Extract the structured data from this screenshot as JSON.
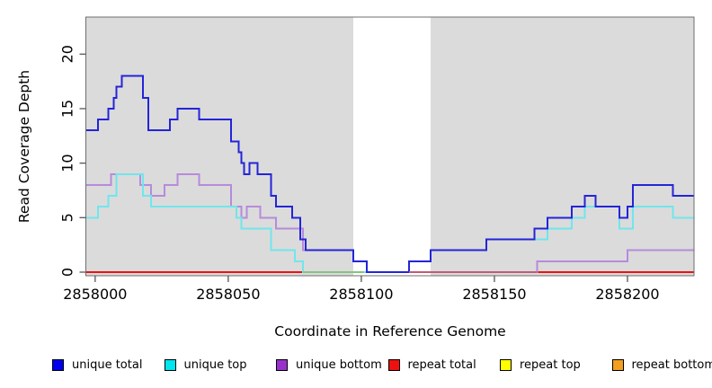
{
  "chart_data": {
    "type": "line",
    "subtype": "step-coverage-plot",
    "title": "",
    "xlabel": "Coordinate in Reference Genome",
    "ylabel": "Read Coverage Depth",
    "xlim": [
      2857996.5,
      2858225
    ],
    "ylim": [
      -0.33,
      23.4
    ],
    "grid": false,
    "x_ticks": [
      {
        "label": "2858000",
        "value": 2858000
      },
      {
        "label": "2858050",
        "value": 2858050
      },
      {
        "label": "2858100",
        "value": 2858100
      },
      {
        "label": "2858150",
        "value": 2858150
      },
      {
        "label": "2858200",
        "value": 2858200
      }
    ],
    "y_ticks": [
      {
        "label": "0",
        "value": 0
      },
      {
        "label": "5",
        "value": 5
      },
      {
        "label": "10",
        "value": 10
      },
      {
        "label": "15",
        "value": 15
      },
      {
        "label": "20",
        "value": 20
      }
    ],
    "background_color": "#ffffff",
    "shade_color": "#dbdbdb",
    "frame_color": "#6e6e6e",
    "tick_color": "#555555",
    "shaded_regions": [
      [
        2857996.5,
        2858097
      ],
      [
        2858126,
        2858225
      ]
    ],
    "uncovered_gap": [
      2858097,
      2858126
    ],
    "series": [
      {
        "name": "repeat bottom",
        "color": "#ffa414",
        "steps": [
          [
            2857996.5,
            0
          ]
        ]
      },
      {
        "name": "repeat top",
        "color": "#ffff00",
        "steps": [
          [
            2857996.5,
            0
          ]
        ]
      },
      {
        "name": "repeat total",
        "color": "#ee1111",
        "steps": [
          [
            2857996.5,
            0
          ]
        ]
      },
      {
        "name": "unique bottom",
        "color": "#b68bdb",
        "steps": [
          [
            2857996.5,
            8
          ],
          [
            2858006,
            9
          ],
          [
            2858017,
            8
          ],
          [
            2858021,
            7
          ],
          [
            2858026,
            8
          ],
          [
            2858031,
            9
          ],
          [
            2858039,
            8
          ],
          [
            2858051,
            6
          ],
          [
            2858055,
            5
          ],
          [
            2858057,
            6
          ],
          [
            2858062,
            5
          ],
          [
            2858068,
            4
          ],
          [
            2858078,
            2
          ],
          [
            2858097,
            1
          ],
          [
            2858102,
            0
          ],
          [
            2858166,
            1
          ],
          [
            2858200,
            2
          ]
        ]
      },
      {
        "name": "unique top",
        "color": "#70e6ec",
        "steps": [
          [
            2857996.5,
            5
          ],
          [
            2858001,
            6
          ],
          [
            2858005,
            7
          ],
          [
            2858008,
            9
          ],
          [
            2858018,
            7
          ],
          [
            2858021,
            6
          ],
          [
            2858053,
            5
          ],
          [
            2858055,
            4
          ],
          [
            2858066,
            2
          ],
          [
            2858075,
            1
          ],
          [
            2858078,
            0
          ],
          [
            2858118,
            1
          ],
          [
            2858126,
            2
          ],
          [
            2858147,
            3
          ],
          [
            2858170,
            4
          ],
          [
            2858179,
            5
          ],
          [
            2858184,
            6
          ],
          [
            2858197,
            4
          ],
          [
            2858202,
            6
          ],
          [
            2858217,
            5
          ]
        ]
      },
      {
        "name": "unique total",
        "color": "#2424d8",
        "steps": [
          [
            2857996.5,
            13
          ],
          [
            2858001,
            14
          ],
          [
            2858005,
            15
          ],
          [
            2858007,
            16
          ],
          [
            2858008,
            17
          ],
          [
            2858010,
            18
          ],
          [
            2858018,
            16
          ],
          [
            2858020,
            13
          ],
          [
            2858028,
            14
          ],
          [
            2858031,
            15
          ],
          [
            2858039,
            14
          ],
          [
            2858051,
            12
          ],
          [
            2858054,
            11
          ],
          [
            2858055,
            10
          ],
          [
            2858056,
            9
          ],
          [
            2858058,
            10
          ],
          [
            2858061,
            9
          ],
          [
            2858066,
            7
          ],
          [
            2858068,
            6
          ],
          [
            2858074,
            5
          ],
          [
            2858077,
            3
          ],
          [
            2858079,
            2
          ],
          [
            2858097,
            1
          ],
          [
            2858102,
            0
          ],
          [
            2858118,
            1
          ],
          [
            2858126,
            2
          ],
          [
            2858147,
            3
          ],
          [
            2858165,
            4
          ],
          [
            2858170,
            5
          ],
          [
            2858179,
            6
          ],
          [
            2858184,
            7
          ],
          [
            2858188,
            6
          ],
          [
            2858197,
            5
          ],
          [
            2858200,
            6
          ],
          [
            2858202,
            8
          ],
          [
            2858217,
            7
          ]
        ]
      }
    ],
    "baseline_overlays": [
      {
        "color": "#85c47f",
        "from": 2858078,
        "to": 2858101
      },
      {
        "color": "#c25a76",
        "from": 2858118,
        "to": 2858166
      }
    ]
  },
  "legend": {
    "items": [
      {
        "label": "unique total",
        "color": "#0000ee"
      },
      {
        "label": "unique top",
        "color": "#00e5ee"
      },
      {
        "label": "unique bottom",
        "color": "#9932cd"
      },
      {
        "label": "repeat total",
        "color": "#ee1111"
      },
      {
        "label": "repeat top",
        "color": "#ffff00"
      },
      {
        "label": "repeat bottom",
        "color": "#f2a01d"
      }
    ]
  }
}
